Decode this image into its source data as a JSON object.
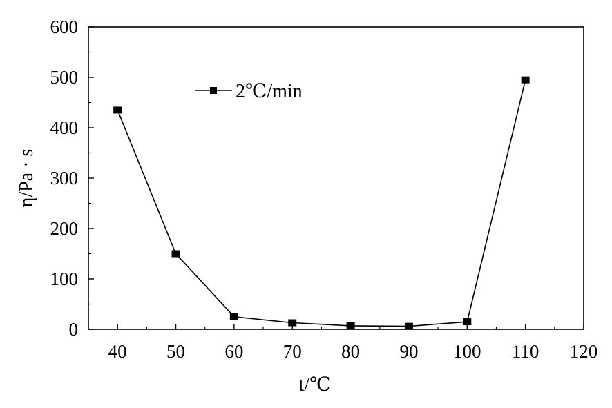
{
  "chart_data": {
    "type": "line",
    "title": "",
    "xlabel": "t/℃",
    "ylabel": "η/Pa · s",
    "xlim": [
      35,
      120
    ],
    "ylim": [
      0,
      600
    ],
    "xticks": [
      40,
      50,
      60,
      70,
      80,
      90,
      100,
      110,
      120
    ],
    "yticks": [
      0,
      100,
      200,
      300,
      400,
      500,
      600
    ],
    "grid": false,
    "legend_position": "upper-left",
    "series": [
      {
        "name": "2℃/min",
        "marker": "square",
        "color": "#000000",
        "x": [
          40,
          50,
          60,
          70,
          80,
          90,
          100,
          110
        ],
        "y": [
          435,
          150,
          25,
          13,
          7,
          6,
          15,
          495
        ]
      }
    ]
  }
}
